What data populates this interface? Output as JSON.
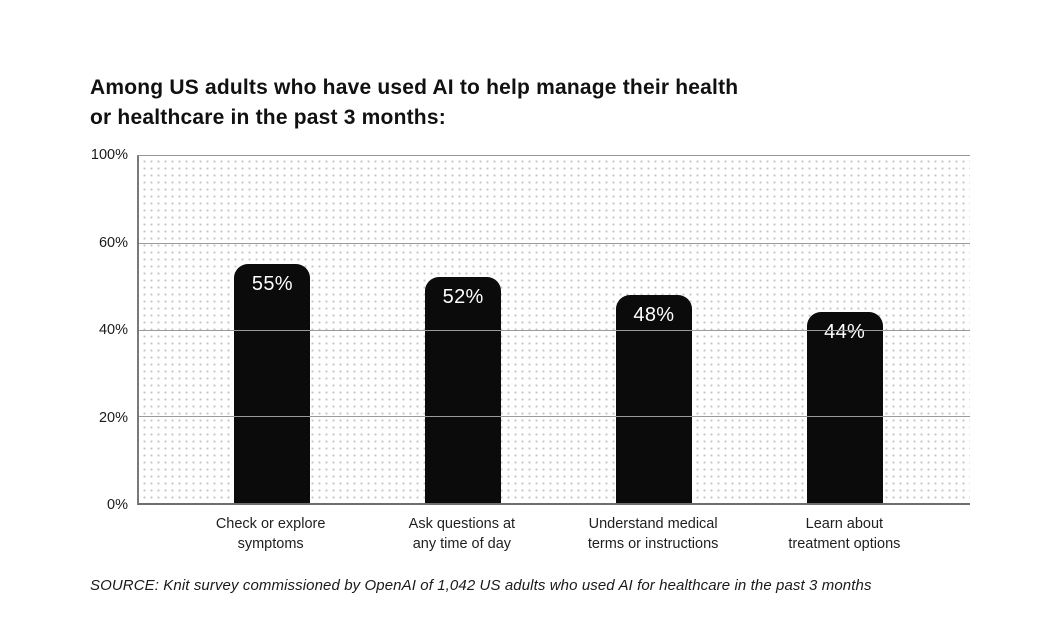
{
  "chart_data": {
    "type": "bar",
    "title": "Among US adults who have used AI to help manage their health or healthcare in the past 3 months:",
    "title_lines": [
      "Among US adults who have used AI to help manage their health",
      "or healthcare in the past 3 months:"
    ],
    "categories": [
      "Check or explore symptoms",
      "Ask questions at any time of day",
      "Understand medical terms or instructions",
      "Learn about treatment options"
    ],
    "category_lines": [
      [
        "Check or explore",
        "symptoms"
      ],
      [
        "Ask questions at",
        "any time of day"
      ],
      [
        "Understand medical",
        "terms or instructions"
      ],
      [
        "Learn about",
        "treatment options"
      ]
    ],
    "values": [
      55,
      52,
      48,
      44
    ],
    "bar_labels": [
      "55%",
      "52%",
      "48%",
      "44%"
    ],
    "y_ticks": [
      "100%",
      "60%",
      "40%",
      "20%",
      "0%"
    ],
    "ylim": [
      0,
      100
    ],
    "gridline_values": [
      20,
      40,
      60
    ],
    "xlabel": "",
    "ylabel": "",
    "legend": "none",
    "layout_hints": {
      "grid": "horizontal gridlines at 20/40/60 drawn over bars, dotted plot background",
      "bar_color": "#0b0b0b",
      "value_label_color": "#ffffff",
      "gridline_color": "#9b9b9b",
      "dot_pattern_color": "#c3c3c3"
    },
    "source": "SOURCE: Knit survey commissioned by OpenAI of 1,042 US adults who used AI for healthcare in the past 3 months"
  }
}
